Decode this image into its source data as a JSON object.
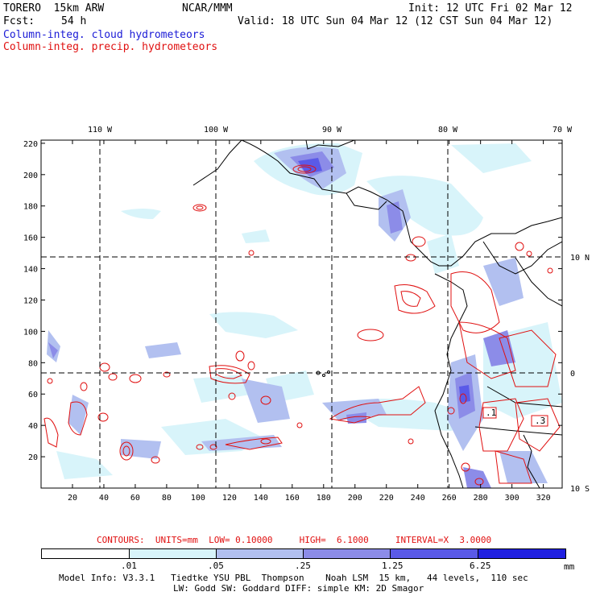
{
  "header": {
    "model_label": "TORERO  15km ARW",
    "org": "NCAR/MMM",
    "init": "Init: 12 UTC Fri 02 Mar 12",
    "fcst_label": "Fcst:",
    "fcst_value": "54 h",
    "valid": "Valid: 18 UTC Sun 04 Mar 12 (12 CST Sun 04 Mar 12)",
    "field1": "Column-integ. cloud hydrometeors",
    "field2": "Column-integ. precip. hydrometeors"
  },
  "map": {
    "top_longitudes": [
      "110 W",
      "100 W",
      "90 W",
      "80 W",
      "70 W"
    ],
    "right_latitudes": [
      "10 N",
      "0",
      "10 S"
    ],
    "y_ticks": [
      "220",
      "200",
      "180",
      "160",
      "140",
      "120",
      "100",
      "80",
      "60",
      "40",
      "20"
    ],
    "x_ticks": [
      "20",
      "40",
      "60",
      "80",
      "100",
      "120",
      "140",
      "160",
      "180",
      "200",
      "220",
      "240",
      "260",
      "280",
      "300",
      "320"
    ],
    "contour_labels": [
      ".1",
      ".3"
    ]
  },
  "legend": {
    "contours_text": "CONTOURS:  UNITS=mm  LOW= 0.10000     HIGH=  6.1000     INTERVAL=X  3.0000",
    "bins": [
      ".01",
      ".05",
      ".25",
      "1.25",
      "6.25"
    ],
    "units": "mm",
    "colors": [
      "#ffffff",
      "#d8f4fa",
      "#b2c0f0",
      "#8c8ce8",
      "#5a5ae8",
      "#2020e0"
    ]
  },
  "footer": {
    "line1": "Model Info: V3.3.1   Tiedtke YSU PBL  Thompson    Noah LSM  15 km,   44 levels,  110 sec",
    "line2": "LW: Godd SW: Goddard DIFF: simple KM: 2D Smagor"
  }
}
